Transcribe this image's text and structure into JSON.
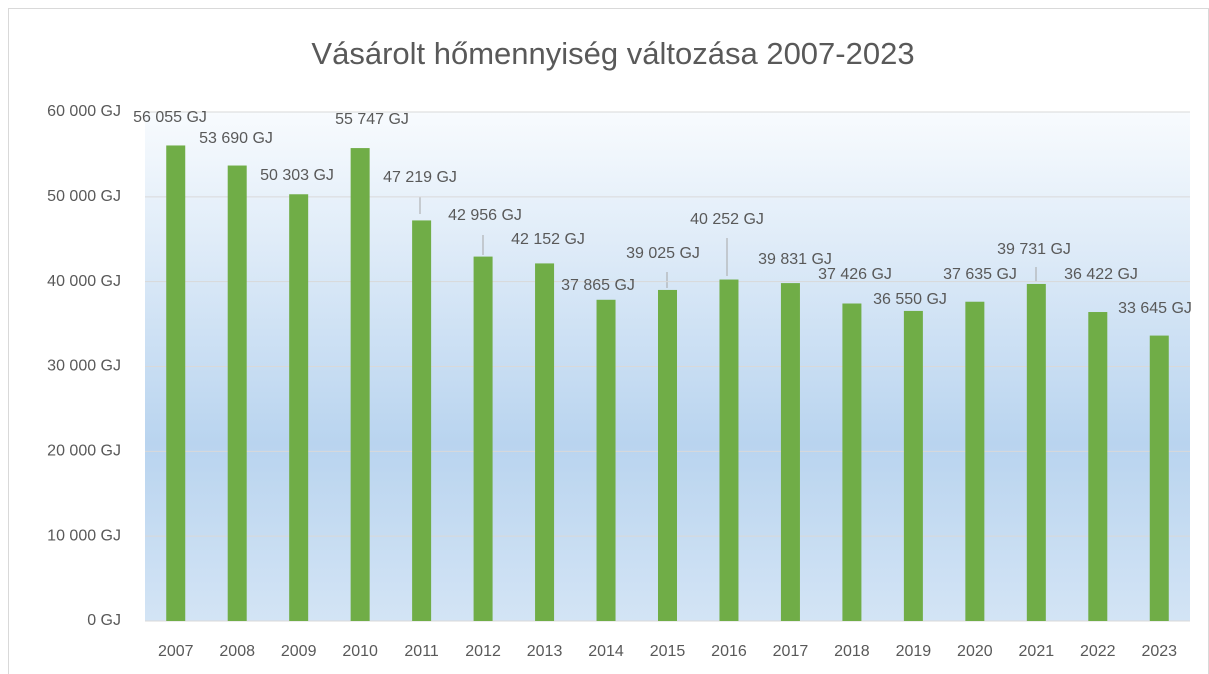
{
  "chart_data": {
    "type": "bar",
    "title": "Vásárolt hőmennyiség változása 2007-2023",
    "categories": [
      "2007",
      "2008",
      "2009",
      "2010",
      "2011",
      "2012",
      "2013",
      "2014",
      "2015",
      "2016",
      "2017",
      "2018",
      "2019",
      "2020",
      "2021",
      "2022",
      "2023"
    ],
    "values": [
      56055,
      53690,
      50303,
      55747,
      47219,
      42956,
      42152,
      37865,
      39025,
      40252,
      39831,
      37426,
      36550,
      37635,
      39731,
      36422,
      33645
    ],
    "value_labels": [
      "56 055 GJ",
      "53 690 GJ",
      "50 303 GJ",
      "55 747 GJ",
      "47 219 GJ",
      "42 956 GJ",
      "42 152 GJ",
      "37 865 GJ",
      "39 025 GJ",
      "40 252 GJ",
      "39 831 GJ",
      "37 426 GJ",
      "36 550 GJ",
      "37 635 GJ",
      "39 731 GJ",
      "36 422 GJ",
      "33 645 GJ"
    ],
    "color": "#70ad47",
    "ylim": [
      0,
      60000
    ],
    "yticks": [
      {
        "value": 0,
        "label": "0 GJ"
      },
      {
        "value": 10000,
        "label": "10 000 GJ"
      },
      {
        "value": 20000,
        "label": "20 000 GJ"
      },
      {
        "value": 30000,
        "label": "30 000 GJ"
      },
      {
        "value": 40000,
        "label": "40 000 GJ"
      },
      {
        "value": 50000,
        "label": "50 000 GJ"
      },
      {
        "value": 60000,
        "label": "60 000 GJ"
      }
    ],
    "grid": true
  }
}
